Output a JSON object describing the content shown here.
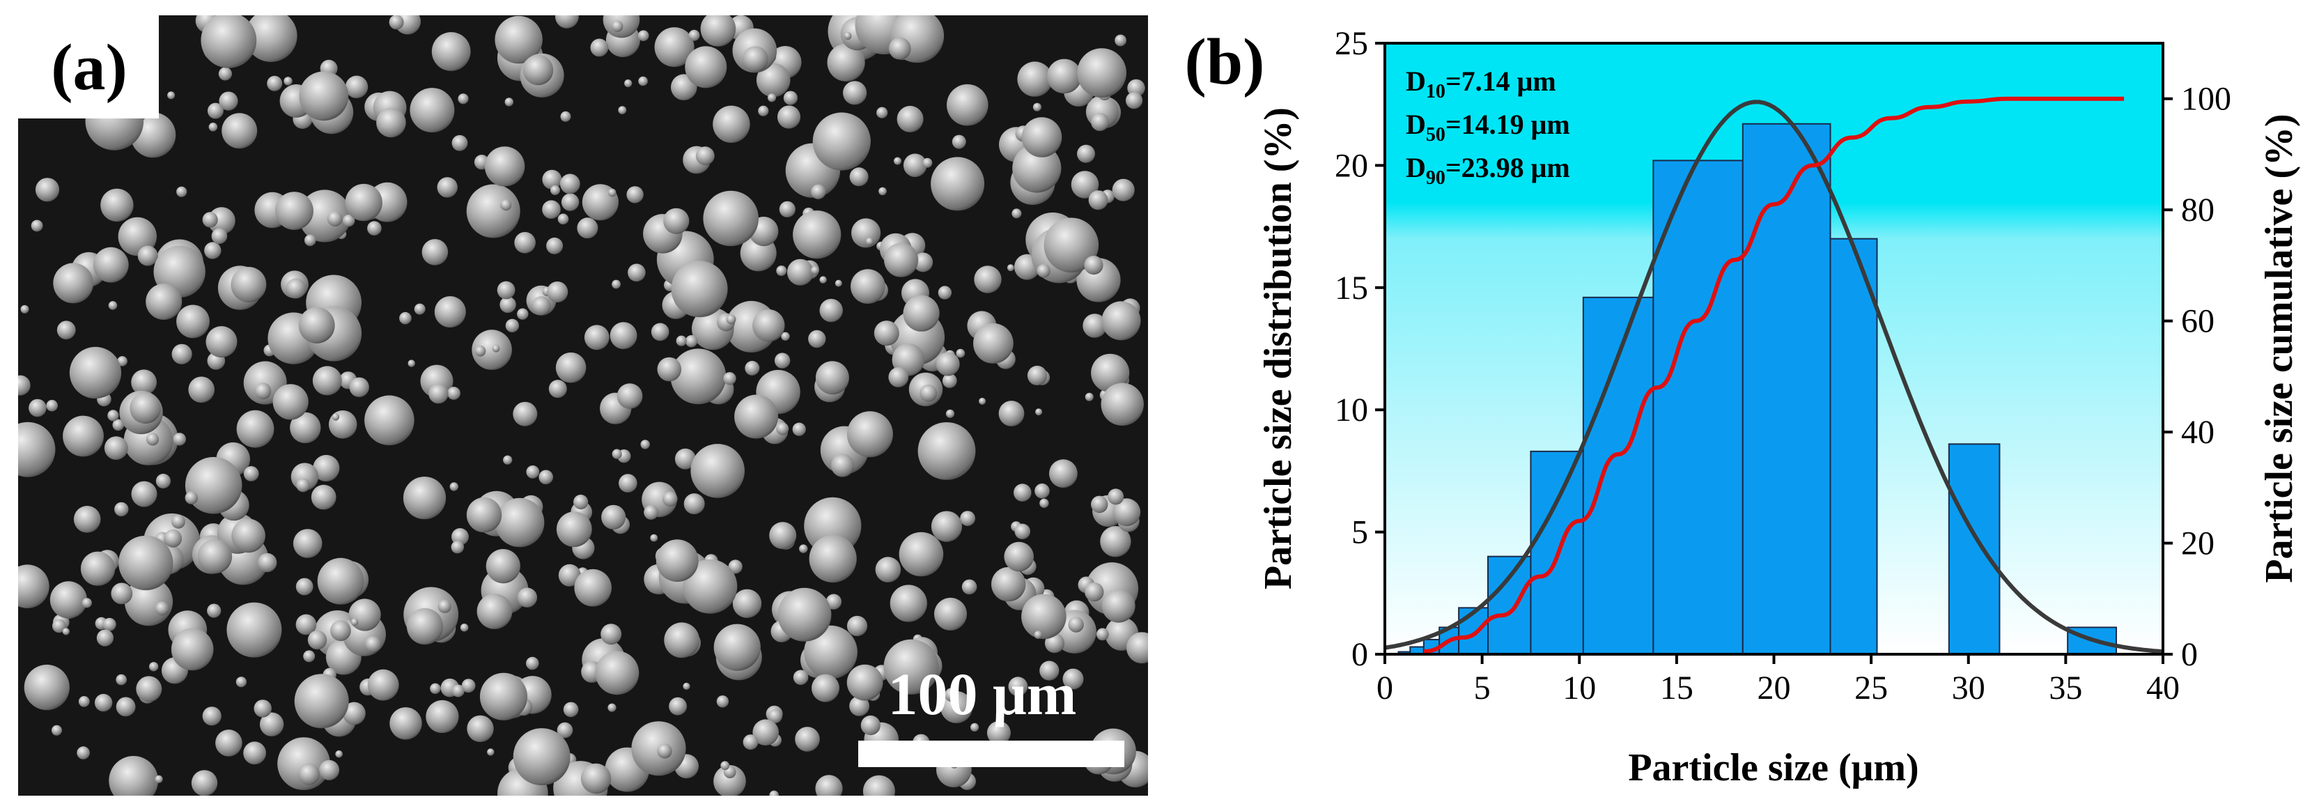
{
  "panel_a": {
    "label": "(a)",
    "scale_bar_label": "100 μm",
    "image_kind": "SEM micrograph of spherical powder particles"
  },
  "panel_b": {
    "label": "(b)",
    "annotations": [
      {
        "sym": "D",
        "sub": "10",
        "val": "=7.14 μm"
      },
      {
        "sym": "D",
        "sub": "50",
        "val": "=14.19 μm"
      },
      {
        "sym": "D",
        "sub": "90",
        "val": "=23.98 μm"
      }
    ]
  },
  "colors": {
    "bar_fill": "#0A9BF0",
    "bar_stroke": "#1a2a4a",
    "normal_curve": "#3a3a3a",
    "cumulative_curve": "#e01010",
    "bg_top": "#00E5F5",
    "bg_bottom": "#ffffff"
  },
  "chart_data": {
    "type": "bar",
    "title": "",
    "xlabel": "Particle size (μm)",
    "ylabel": "Particle size distribution (%)",
    "y2label": "Particle size cumulative (%)",
    "xlim": [
      0,
      40
    ],
    "ylim": [
      0,
      25
    ],
    "y2lim": [
      0,
      110
    ],
    "x_ticks": [
      0,
      5,
      10,
      15,
      20,
      25,
      30,
      35,
      40
    ],
    "y_ticks": [
      0,
      5,
      10,
      15,
      20,
      25
    ],
    "y2_ticks": [
      0,
      20,
      40,
      60,
      80,
      100
    ],
    "grid": false,
    "bars": [
      {
        "x0": 0.7,
        "x1": 1.3,
        "value": 0.1
      },
      {
        "x0": 1.3,
        "x1": 2.0,
        "value": 0.3
      },
      {
        "x0": 2.0,
        "x1": 2.8,
        "value": 0.6
      },
      {
        "x0": 2.8,
        "x1": 3.8,
        "value": 1.1
      },
      {
        "x0": 3.8,
        "x1": 5.3,
        "value": 1.9
      },
      {
        "x0": 5.3,
        "x1": 7.5,
        "value": 4.0
      },
      {
        "x0": 7.5,
        "x1": 10.2,
        "value": 8.3
      },
      {
        "x0": 10.2,
        "x1": 13.8,
        "value": 14.6
      },
      {
        "x0": 13.8,
        "x1": 18.4,
        "value": 20.2
      },
      {
        "x0": 18.4,
        "x1": 22.9,
        "value": 21.7
      },
      {
        "x0": 22.9,
        "x1": 25.3,
        "value": 17.0
      },
      {
        "x0": 29.0,
        "x1": 31.6,
        "value": 8.6
      },
      {
        "x0": 35.1,
        "x1": 37.6,
        "value": 1.1
      }
    ],
    "normal_fit": {
      "mean": 19.1,
      "sd": 6.4,
      "peak": 22.6,
      "axis": "left"
    },
    "cumulative": {
      "axis": "right",
      "x": [
        2,
        4,
        6,
        8,
        10,
        12,
        14,
        16,
        18,
        20,
        22,
        24,
        26,
        28,
        30,
        32,
        34,
        36,
        38
      ],
      "y": [
        0.5,
        3,
        7,
        14,
        24,
        36,
        48,
        60,
        71,
        81,
        88,
        93,
        96.5,
        98.5,
        99.5,
        100,
        100,
        100,
        100
      ]
    }
  }
}
